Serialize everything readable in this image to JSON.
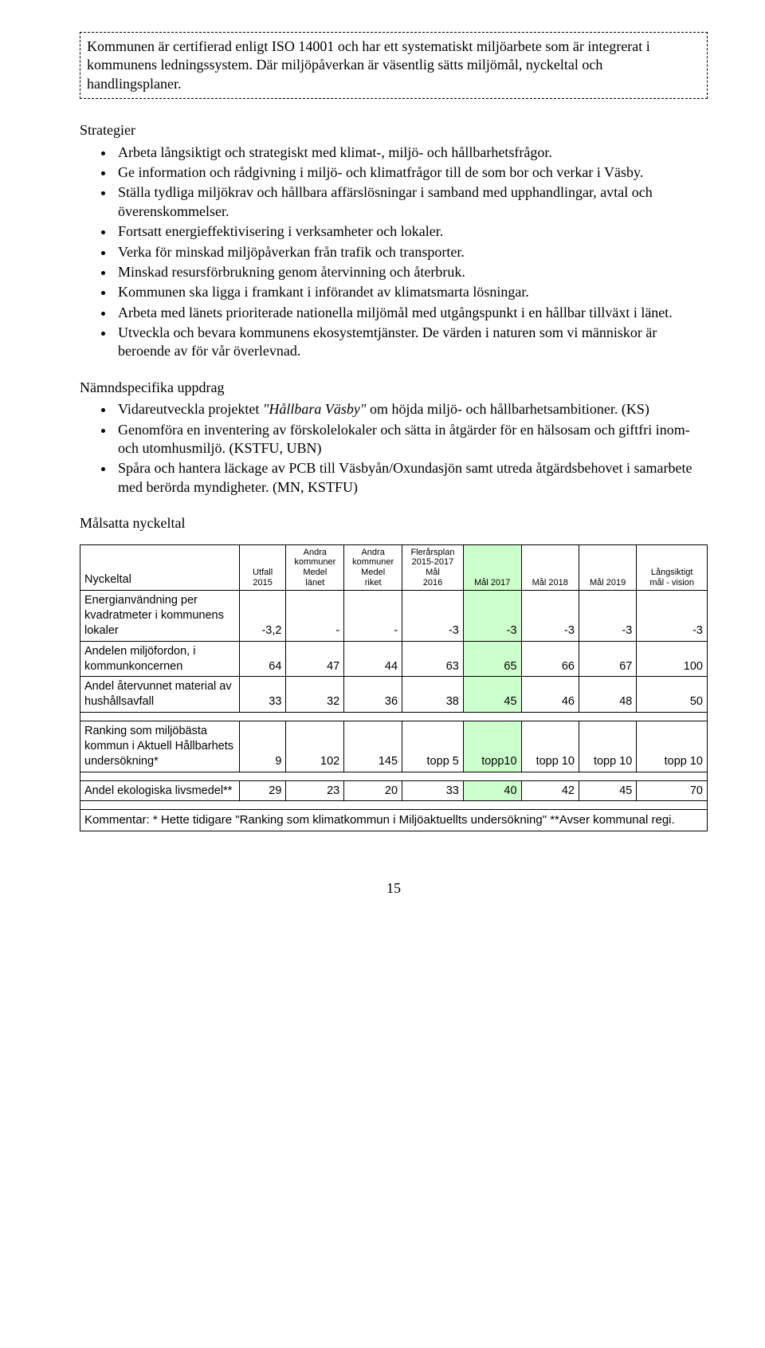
{
  "intro_box": "Kommunen är certifierad enligt ISO 14001 och har ett systematiskt miljöarbete som är integrerat i kommunens ledningssystem. Där miljöpåverkan är väsentlig sätts miljömål, nyckeltal och handlingsplaner.",
  "strategier": {
    "heading": "Strategier",
    "items": [
      "Arbeta långsiktigt och strategiskt med klimat-, miljö- och hållbarhetsfrågor.",
      "Ge information och rådgivning i miljö- och klimatfrågor till de som bor och verkar i Väsby.",
      "Ställa tydliga miljökrav och hållbara affärslösningar i samband med upphandlingar, avtal och överenskommelser.",
      "Fortsatt energieffektivisering i verksamheter och lokaler.",
      "Verka för minskad miljöpåverkan från trafik och transporter.",
      "Minskad resursförbrukning genom återvinning och återbruk.",
      "Kommunen ska ligga i framkant i införandet av klimatsmarta lösningar.",
      "Arbeta med länets prioriterade nationella miljömål med utgångspunkt i en hållbar tillväxt i länet.",
      "Utveckla och bevara kommunens ekosystemtjänster. De värden i naturen som vi människor är beroende av för vår överlevnad."
    ]
  },
  "uppdrag": {
    "heading": "Nämndspecifika uppdrag",
    "items": [
      "Vidareutveckla projektet <i>\"Hållbara Väsby\"</i> om höjda miljö- och hållbarhetsambitioner. (KS)",
      "Genomföra en inventering av förskolelokaler och sätta in åtgärder för en hälsosam och giftfri inom- och utomhusmiljö. (KSTFU, UBN)",
      "Spåra och hantera läckage av PCB till Väsbyån/Oxundasjön samt utreda åtgärdsbehovet i samarbete med berörda myndigheter. (MN, KSTFU)"
    ]
  },
  "malsatta": {
    "heading": "Målsatta nyckeltal"
  },
  "table": {
    "headers": {
      "nyckeltal": "Nyckeltal",
      "utfall": "Utfall\n2015",
      "lanet": "Andra\nkommuner\nMedel\nlänet",
      "riket": "Andra\nkommuner\nMedel\nriket",
      "flerar": "Flerårsplan\n2015-2017\nMål\n2016",
      "m2017": "Mål 2017",
      "m2018": "Mål 2018",
      "m2019": "Mål 2019",
      "vision": "Långsiktigt\nmål - vision"
    },
    "highlight_color": "#ccffcc",
    "rows": [
      {
        "label": "Energianvändning per kvadratmeter i kommunens lokaler",
        "utfall": "-3,2",
        "lanet": "-",
        "riket": "-",
        "flerar": "-3",
        "m2017": "-3",
        "m2018": "-3",
        "m2019": "-3",
        "vision": "-3"
      },
      {
        "label": "Andelen miljöfordon, i kommunkoncernen",
        "utfall": "64",
        "lanet": "47",
        "riket": "44",
        "flerar": "63",
        "m2017": "65",
        "m2018": "66",
        "m2019": "67",
        "vision": "100"
      },
      {
        "label": "Andel återvunnet material av hushållsavfall",
        "utfall": "33",
        "lanet": "32",
        "riket": "36",
        "flerar": "38",
        "m2017": "45",
        "m2018": "46",
        "m2019": "48",
        "vision": "50"
      },
      {
        "label": "Ranking som miljöbästa kommun i Aktuell Hållbarhets undersökning*",
        "utfall": "9",
        "lanet": "102",
        "riket": "145",
        "flerar": "topp 5",
        "m2017": "topp10",
        "m2018": "topp 10",
        "m2019": "topp 10",
        "vision": "topp 10"
      },
      {
        "label": "Andel ekologiska livsmedel**",
        "utfall": "29",
        "lanet": "23",
        "riket": "20",
        "flerar": "33",
        "m2017": "40",
        "m2018": "42",
        "m2019": "45",
        "vision": "70"
      }
    ],
    "comment": "Kommentar: * Hette tidigare \"Ranking som klimatkommun i Miljöaktuellts undersökning\" **Avser kommunal regi."
  },
  "page_number": "15"
}
